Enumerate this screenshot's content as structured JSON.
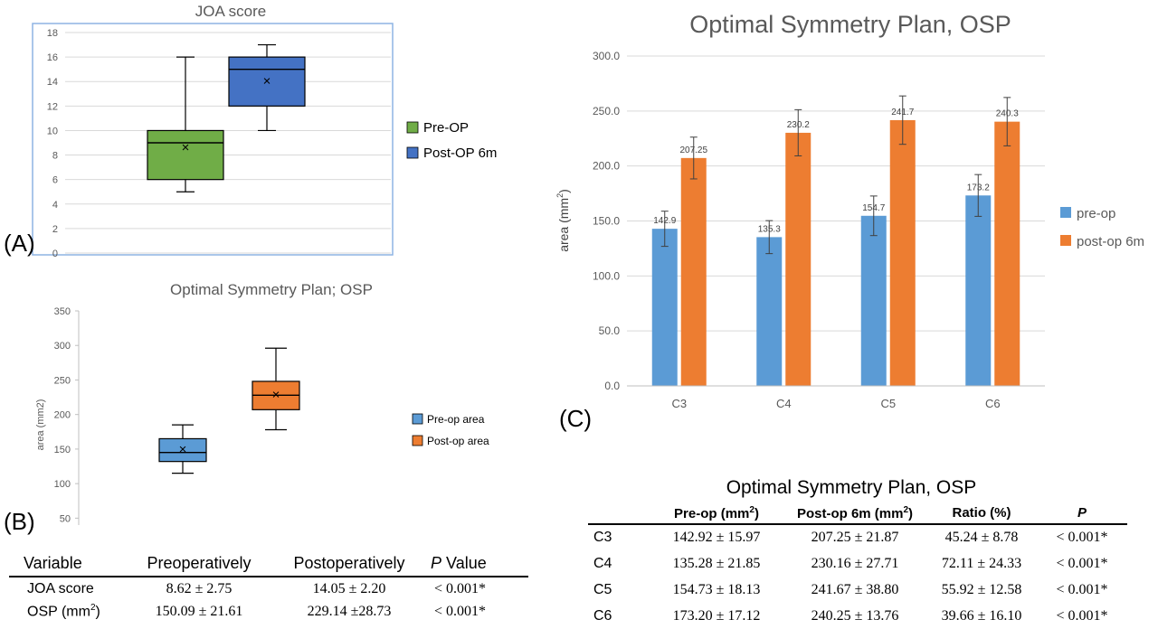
{
  "panel_labels": {
    "a": "(A)",
    "b": "(B)",
    "c": "(C)"
  },
  "chart_data": [
    {
      "id": "A",
      "type": "box",
      "title": "JOA score",
      "ylim": [
        0,
        18
      ],
      "yticks": [
        "0",
        "2",
        "4",
        "6",
        "8",
        "10",
        "12",
        "14",
        "16",
        "18"
      ],
      "grid": true,
      "legend_position": "right",
      "series": [
        {
          "name": "Pre-OP",
          "color": "#70AD47",
          "min": 5,
          "q1": 6,
          "median": 9,
          "q3": 10,
          "max": 16,
          "mean": 8.62
        },
        {
          "name": "Post-OP 6m",
          "color": "#4472C4",
          "min": 10,
          "q1": 12,
          "median": 15,
          "q3": 16,
          "max": 17,
          "mean": 14.05
        }
      ]
    },
    {
      "id": "B",
      "type": "box",
      "title": "Optimal Symmetry Plan; OSP",
      "ylabel": "area (mm2)",
      "ylim": [
        40,
        350
      ],
      "yticks": [
        "50",
        "100",
        "150",
        "200",
        "250",
        "300",
        "350"
      ],
      "grid": false,
      "legend_position": "right",
      "series": [
        {
          "name": "Pre-op area",
          "color": "#5B9BD5",
          "min": 115,
          "q1": 132,
          "median": 145,
          "q3": 165,
          "max": 185,
          "mean": 150.09
        },
        {
          "name": "Post-op area",
          "color": "#ED7D31",
          "min": 178,
          "q1": 207,
          "median": 228,
          "q3": 248,
          "max": 296,
          "mean": 229.14
        }
      ]
    },
    {
      "id": "C",
      "type": "bar",
      "title": "Optimal Symmetry Plan, OSP",
      "ylabel": "area (mm",
      "ylabel_sup": "2",
      "ylabel_end": ")",
      "ylim": [
        0,
        300
      ],
      "yticks": [
        "0.0",
        "50.0",
        "100.0",
        "150.0",
        "200.0",
        "250.0",
        "300.0"
      ],
      "grid": true,
      "legend_position": "right",
      "categories": [
        "C3",
        "C4",
        "C5",
        "C6"
      ],
      "series": [
        {
          "name": "pre-op",
          "color": "#5B9BD5",
          "values": [
            142.9,
            135.3,
            154.7,
            173.2
          ],
          "errors": [
            16,
            15,
            18,
            19
          ],
          "labels": [
            "142.9",
            "135.3",
            "154.7",
            "173.2"
          ]
        },
        {
          "name": "post-op 6m",
          "color": "#ED7D31",
          "values": [
            207.25,
            230.2,
            241.7,
            240.3
          ],
          "errors": [
            19,
            21,
            22,
            22
          ],
          "labels": [
            "207.25",
            "230.2",
            "241.7",
            "240.3"
          ]
        }
      ]
    }
  ],
  "table_left": {
    "headers": [
      "Variable",
      "Preoperatively",
      "Postoperatively",
      "P",
      "Value"
    ],
    "rows": [
      {
        "var": "JOA score",
        "var_sup": "",
        "var_end": "",
        "pre": "8.62 ± 2.75",
        "post": "14.05 ± 2.20",
        "p": "< 0.001*"
      },
      {
        "var": "OSP (mm",
        "var_sup": "2",
        "var_end": ")",
        "pre": "150.09 ± 21.61",
        "post": "229.14 ±28.73",
        "p": "< 0.001*"
      }
    ]
  },
  "table_right": {
    "title": "Optimal Symmetry Plan, OSP",
    "h_pre": "Pre-op (mm",
    "h_pre_sup": "2",
    "h_pre_end": ")",
    "h_post": "Post-op 6m (mm",
    "h_post_sup": "2",
    "h_post_end": ")",
    "h_ratio": "Ratio (%)",
    "h_p": "P",
    "rows": [
      {
        "level": "C3",
        "pre": "142.92 ± 15.97",
        "post": "207.25 ± 21.87",
        "ratio": "45.24 ± 8.78",
        "p": "< 0.001*"
      },
      {
        "level": "C4",
        "pre": "135.28 ± 21.85",
        "post": "230.16 ± 27.71",
        "ratio": "72.11 ± 24.33",
        "p": "< 0.001*"
      },
      {
        "level": "C5",
        "pre": "154.73 ± 18.13",
        "post": "241.67 ± 38.80",
        "ratio": "55.92 ± 12.58",
        "p": "< 0.001*"
      },
      {
        "level": "C6",
        "pre": "173.20 ± 17.12",
        "post": "240.25 ± 13.76",
        "ratio": "39.66 ± 16.10",
        "p": "< 0.001*"
      }
    ]
  }
}
